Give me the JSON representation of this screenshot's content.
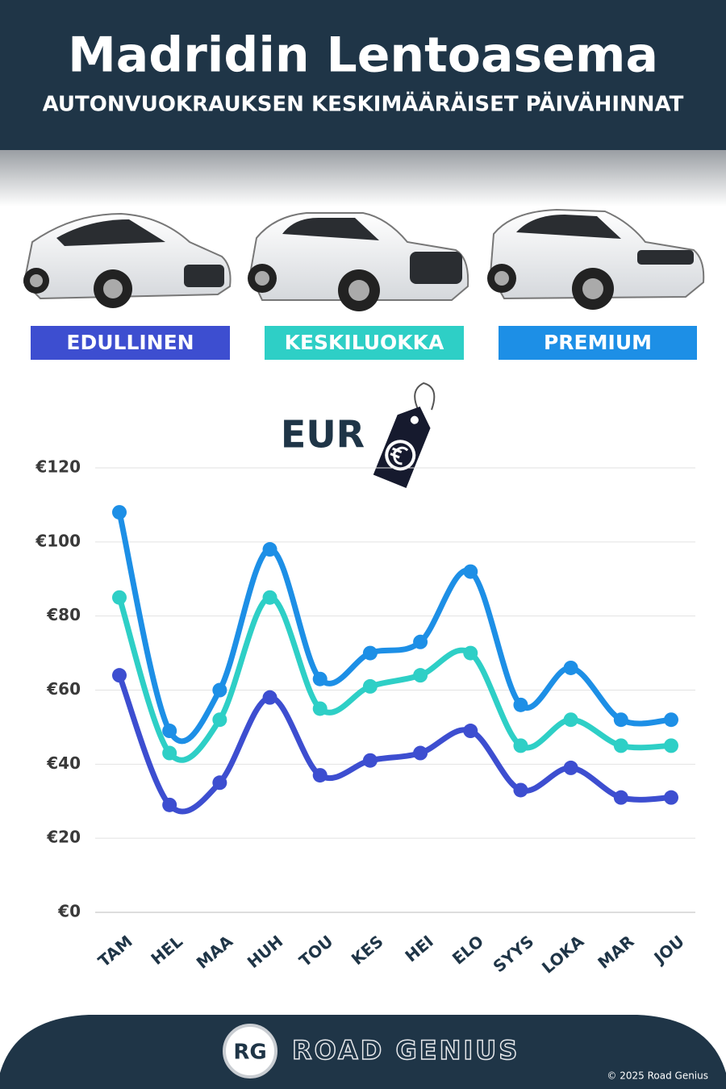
{
  "chart_data": {
    "type": "line",
    "title": "Madridin Lentoasema",
    "subtitle": "AUTONVUOKRAUKSEN KESKIMÄÄRÄISET PÄIVÄHINNAT",
    "y_label": "EUR",
    "categories": [
      "TAM",
      "HEL",
      "MAA",
      "HUH",
      "TOU",
      "KES",
      "HEI",
      "ELO",
      "SYYS",
      "LOKA",
      "MAR",
      "JOU"
    ],
    "series": [
      {
        "name": "EDULLINEN",
        "color": "#3d4ed0",
        "values": [
          64,
          29,
          35,
          58,
          37,
          41,
          43,
          49,
          33,
          39,
          31,
          31
        ]
      },
      {
        "name": "KESKILUOKKA",
        "color": "#2ecfc6",
        "values": [
          85,
          43,
          52,
          85,
          55,
          61,
          64,
          70,
          45,
          52,
          45,
          45
        ]
      },
      {
        "name": "PREMIUM",
        "color": "#1d8fe6",
        "values": [
          108,
          49,
          60,
          98,
          63,
          70,
          73,
          92,
          56,
          66,
          52,
          52
        ]
      }
    ],
    "ylim": [
      0,
      120
    ],
    "yticks": [
      {
        "value": 0,
        "label": "€0"
      },
      {
        "value": 20,
        "label": "€20"
      },
      {
        "value": 40,
        "label": "€40"
      },
      {
        "value": 60,
        "label": "€60"
      },
      {
        "value": 80,
        "label": "€80"
      },
      {
        "value": 100,
        "label": "€100"
      },
      {
        "value": 120,
        "label": "€120"
      }
    ],
    "grid": true
  },
  "footer": {
    "logo": "RG",
    "brand": "ROAD GENIUS",
    "copyright": "© 2025 Road Genius"
  }
}
